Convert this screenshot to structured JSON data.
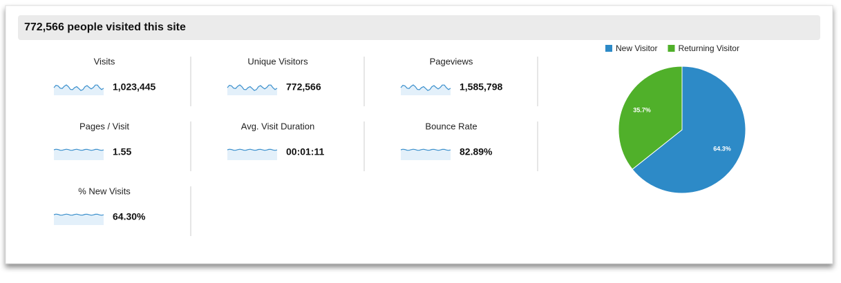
{
  "header": {
    "title": "772,566 people visited this site"
  },
  "metrics": [
    {
      "label": "Visits",
      "value": "1,023,445"
    },
    {
      "label": "Unique Visitors",
      "value": "772,566"
    },
    {
      "label": "Pageviews",
      "value": "1,585,798"
    },
    {
      "label": "Pages / Visit",
      "value": "1.55"
    },
    {
      "label": "Avg. Visit Duration",
      "value": "00:01:11"
    },
    {
      "label": "Bounce Rate",
      "value": "82.89%"
    },
    {
      "label": "% New Visits",
      "value": "64.30%"
    }
  ],
  "chart_data": {
    "type": "pie",
    "categories": [
      "New Visitor",
      "Returning Visitor"
    ],
    "values": [
      64.3,
      35.7
    ],
    "value_labels": [
      "64.3%",
      "35.7%"
    ],
    "colors": [
      "#2d8ac7",
      "#50b02a"
    ],
    "legend": "top"
  }
}
